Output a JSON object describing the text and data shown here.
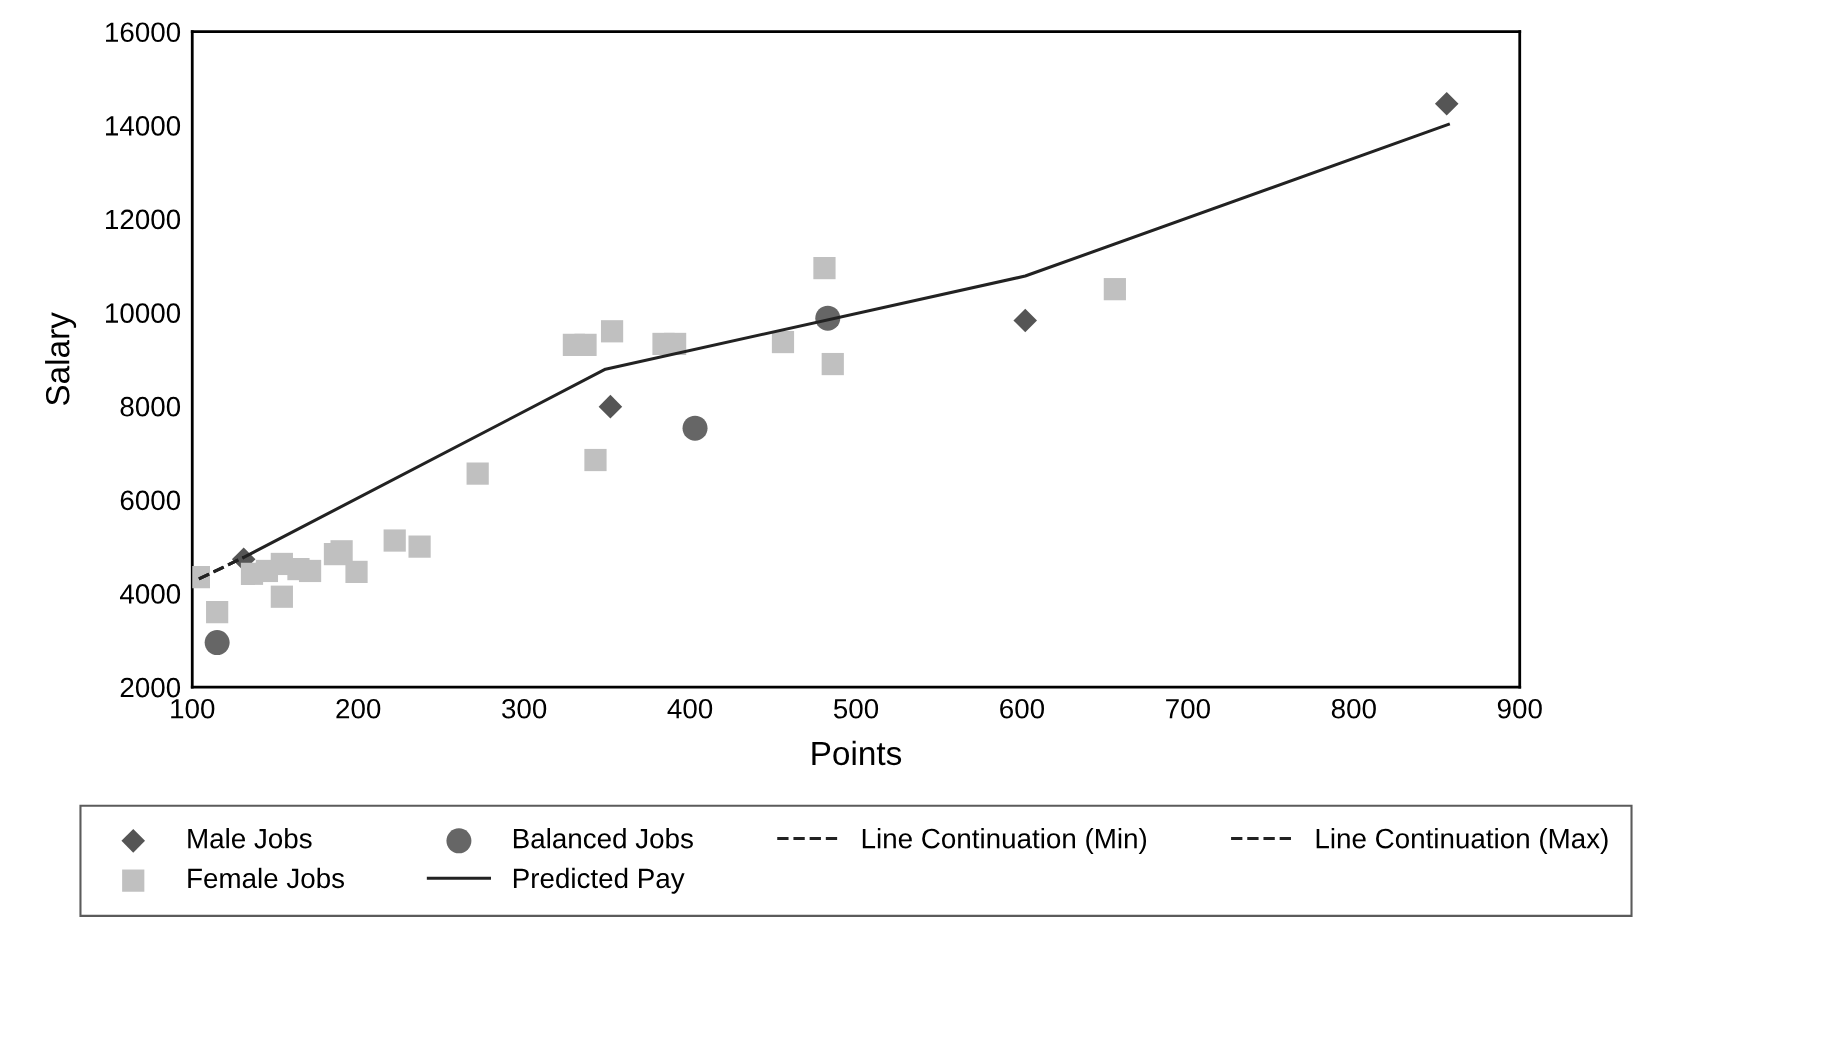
{
  "chart_data": {
    "type": "scatter",
    "xlabel": "Points",
    "ylabel": "Salary",
    "xlim": [
      100,
      900
    ],
    "ylim": [
      2000,
      16000
    ],
    "xticks": [
      100,
      200,
      300,
      400,
      500,
      600,
      700,
      800,
      900
    ],
    "yticks": [
      2000,
      4000,
      6000,
      8000,
      10000,
      12000,
      14000,
      16000
    ],
    "grid": false,
    "legend": "bottom",
    "series": [
      {
        "name": "Male Jobs",
        "marker": "diamond",
        "color": "#555555",
        "x": [
          131,
          352,
          602,
          856
        ],
        "values": [
          4730,
          7990,
          9830,
          14460
        ]
      },
      {
        "name": "Female Jobs",
        "marker": "square",
        "color": "#c0c0c0",
        "x": [
          104,
          115,
          136,
          145,
          154,
          154,
          164,
          171,
          186,
          190,
          199,
          222,
          237,
          272,
          330,
          337,
          353,
          343,
          384,
          391,
          456,
          481,
          486,
          656
        ],
        "values": [
          4350,
          3600,
          4420,
          4480,
          4630,
          3930,
          4520,
          4480,
          4840,
          4900,
          4460,
          5130,
          5000,
          6560,
          9310,
          9310,
          9600,
          6850,
          9330,
          9330,
          9370,
          10950,
          8900,
          10500
        ]
      },
      {
        "name": "Balanced Jobs",
        "marker": "circle",
        "color": "#666666",
        "x": [
          115,
          403,
          483
        ],
        "values": [
          2950,
          7530,
          9880
        ]
      },
      {
        "name": "Predicted Pay",
        "type": "line",
        "line_style": "solid",
        "color": "#222222",
        "x": [
          131,
          349,
          602,
          857
        ],
        "values": [
          4770,
          8790,
          10780,
          14020
        ]
      },
      {
        "name": "Line Continuation (Min)",
        "type": "line",
        "line_style": "dashed",
        "color": "#222222",
        "x": [
          104,
          131
        ],
        "values": [
          4310,
          4770
        ]
      },
      {
        "name": "Line Continuation (Max)",
        "type": "line",
        "line_style": "dashed",
        "color": "#222222",
        "x": [
          104,
          131
        ],
        "values": [
          4310,
          4770
        ]
      }
    ]
  }
}
